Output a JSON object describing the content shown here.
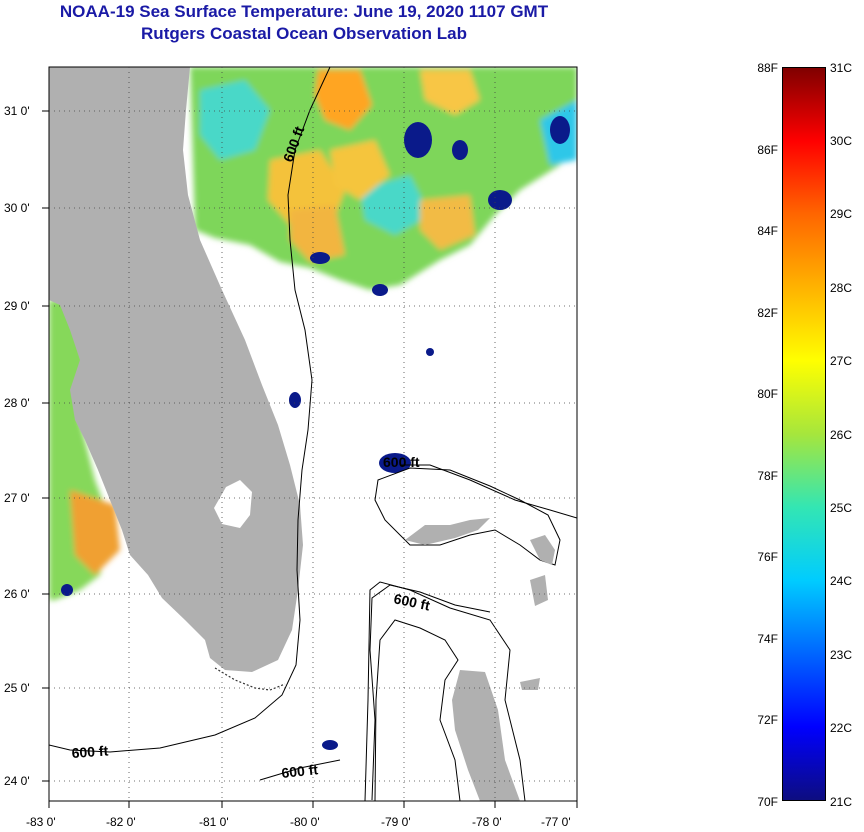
{
  "title": {
    "line1": "NOAA-19 Sea Surface Temperature:  June 19, 2020 1107 GMT",
    "line2": "Rutgers Coastal Ocean Observation Lab"
  },
  "axes": {
    "lon_labels": [
      "-83 0'",
      "-82 0'",
      "-81 0'",
      "-80 0'",
      "-79 0'",
      "-78 0'",
      "-77 0'"
    ],
    "lat_labels": [
      "31 0'",
      "30 0'",
      "29 0'",
      "28 0'",
      "27 0'",
      "26 0'",
      "25 0'",
      "24 0'"
    ]
  },
  "contours": {
    "labels": [
      "600 ft",
      "600 ft",
      "600 ft",
      "600 ft",
      "600 ft"
    ]
  },
  "colorbar": {
    "fahrenheit": [
      "88F",
      "86F",
      "84F",
      "82F",
      "80F",
      "78F",
      "76F",
      "74F",
      "72F",
      "70F"
    ],
    "celsius": [
      "31C",
      "30C",
      "29C",
      "28C",
      "27C",
      "26C",
      "25C",
      "24C",
      "23C",
      "22C",
      "21C"
    ],
    "f_range": [
      70,
      88
    ],
    "colors": [
      "#0d0d80",
      "#0000ff",
      "#0066ff",
      "#00ccff",
      "#33e6b3",
      "#a6e63c",
      "#ffff00",
      "#ffb300",
      "#ff6600",
      "#ff0000",
      "#800000"
    ]
  },
  "colors": {
    "land": "#b0b0b0",
    "title": "#1a1aa6"
  }
}
